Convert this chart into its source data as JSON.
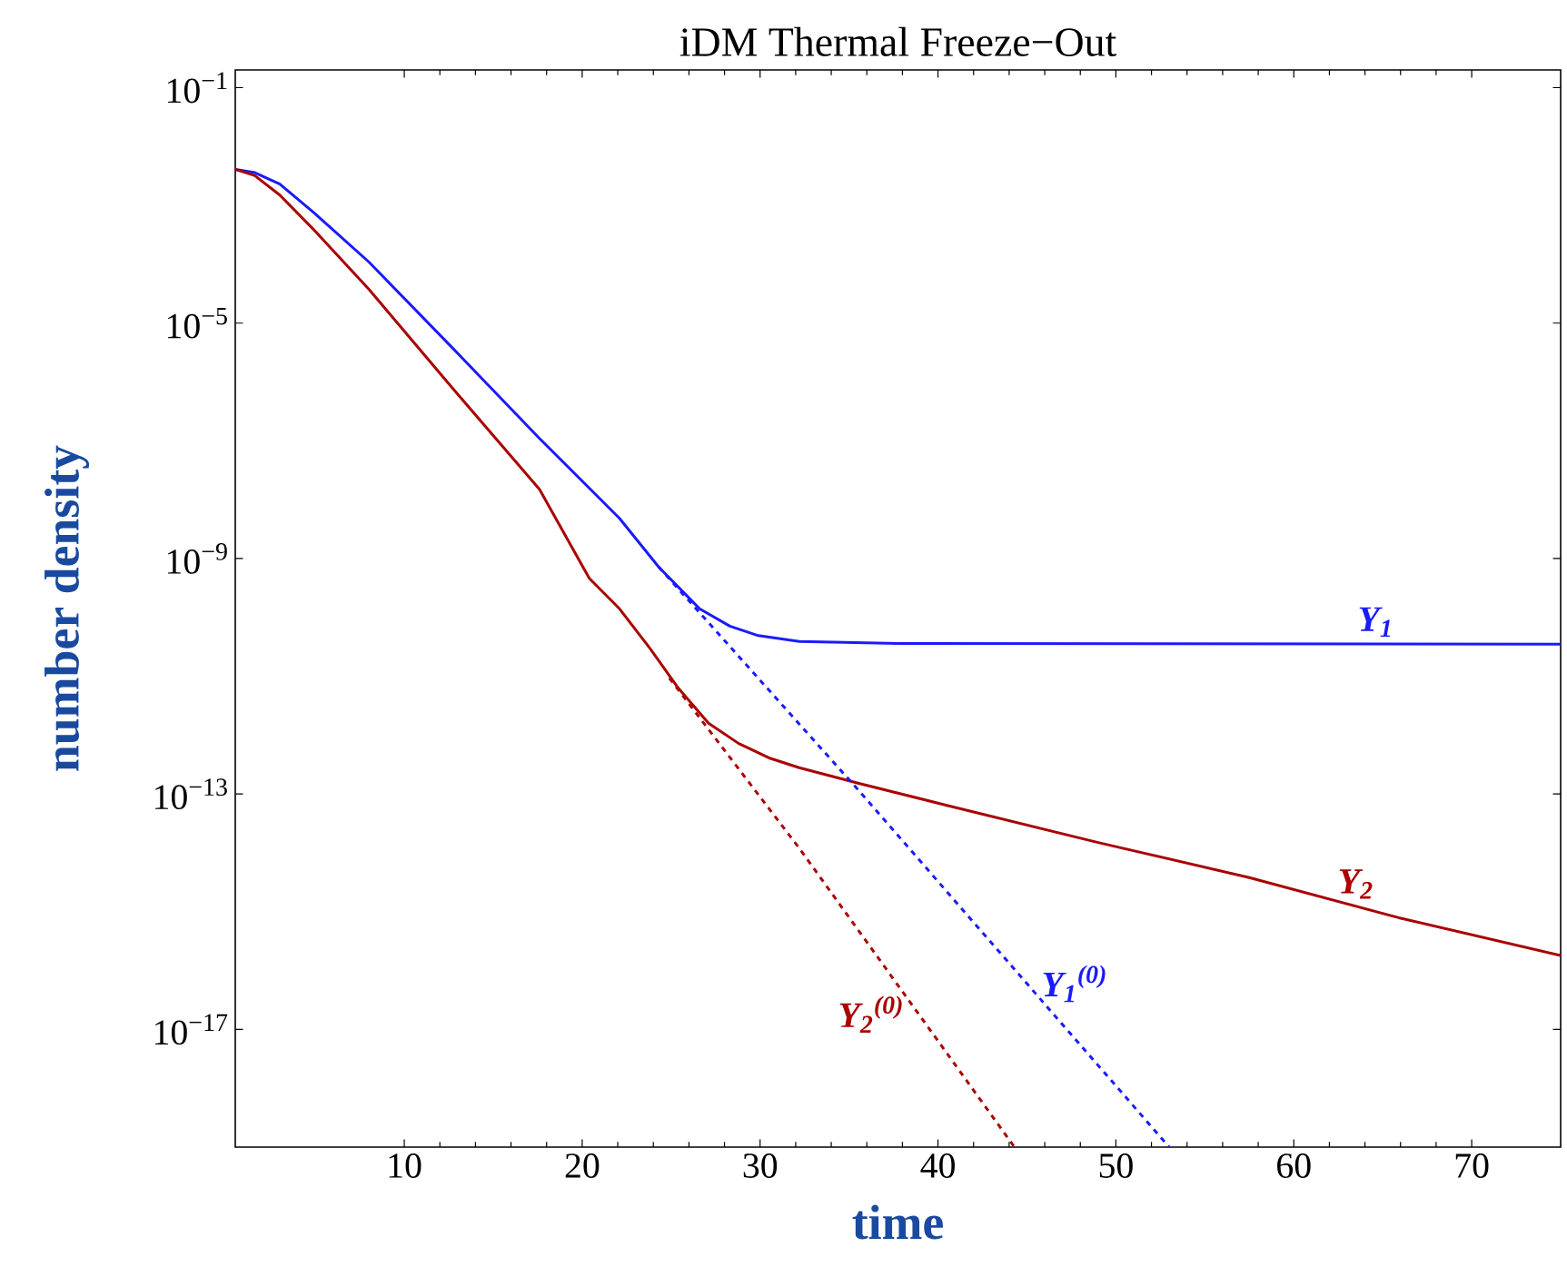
{
  "chart_data": {
    "type": "line",
    "title": "iDM Thermal Freeze−Out",
    "xlabel": "time",
    "ylabel": "number density",
    "log": "y",
    "xlim": [
      0.5,
      75
    ],
    "ylim": [
      1e-19,
      0.2
    ],
    "xticks": [
      10,
      20,
      30,
      40,
      50,
      60,
      70
    ],
    "yticks": [
      {
        "value": 0.1,
        "label": "10$^{−1}$"
      },
      {
        "value": 1e-05,
        "label": "10$^{−5}$"
      },
      {
        "value": 1e-09,
        "label": "10$^{−9}$"
      },
      {
        "value": 1e-13,
        "label": "10$^{−13}$"
      },
      {
        "value": 1e-17,
        "label": "10$^{−17}$"
      }
    ],
    "marker": "none",
    "series": [
      {
        "name": "Y$_{1}$",
        "color": "#1a1aff",
        "line_style": "solid",
        "x": [
          0.5,
          1.6,
          3,
          4.9,
          8,
          12.5,
          17.6,
          22.1,
          24.3,
          26.6,
          28.3,
          29.9,
          32.2,
          37.8,
          75
        ],
        "values": [
          0.0041,
          0.0036,
          0.0023,
          0.00076,
          0.00011,
          4.4e-06,
          1.1e-07,
          4.8e-09,
          7.2e-10,
          1.4e-10,
          7.1e-11,
          4.9e-11,
          3.9e-11,
          3.6e-11,
          3.5e-11
        ]
      },
      {
        "name": "Y$_{2}$",
        "color": "#aa0000",
        "line_style": "solid",
        "x": [
          0.5,
          1.6,
          3,
          4.9,
          8,
          12.5,
          17.6,
          20.4,
          22.1,
          23.8,
          25.4,
          27.1,
          28.8,
          30.5,
          32.2,
          35.6,
          40.6,
          49,
          57.5,
          65.9,
          75
        ],
        "values": [
          0.0041,
          0.0032,
          0.0015,
          0.00039,
          3.8e-05,
          9.3e-07,
          1.5e-08,
          4.6e-10,
          1.4e-10,
          3e-11,
          6.3e-12,
          1.6e-12,
          7.2e-13,
          4.1e-13,
          2.8e-13,
          1.5e-13,
          6.3e-14,
          1.5e-14,
          3.8e-15,
          7.9e-16,
          1.8e-16
        ]
      },
      {
        "name": "Y$_{2}$$^{(0)}$",
        "color": "#aa0000",
        "line_style": "dashed",
        "x": [
          24.9,
          32.2,
          44.3
        ],
        "values": [
          9.3e-12,
          1.2e-14,
          1e-19
        ]
      },
      {
        "name": "Y$_{1}$$^{(0)}$",
        "color": "#1a1aff",
        "line_style": "dashed",
        "x": [
          24.3,
          35.6,
          53
        ],
        "values": [
          7.2e-10,
          1.1e-13,
          1e-19
        ]
      }
    ]
  }
}
